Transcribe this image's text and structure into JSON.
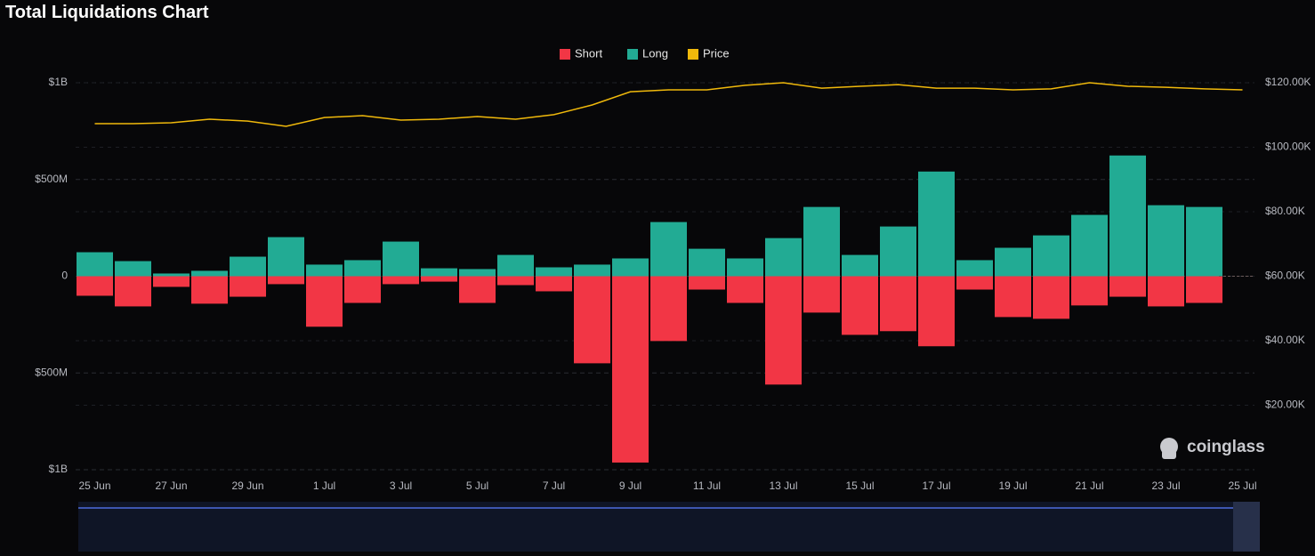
{
  "chart_data": {
    "type": "bar",
    "title": "Total Liquidations Chart",
    "watermark": "coinglass",
    "legend": "top",
    "grid": true,
    "categories": [
      "25 Jun",
      null,
      "27 Jun",
      null,
      "29 Jun",
      null,
      "1 Jul",
      null,
      "3 Jul",
      null,
      "5 Jul",
      null,
      "7 Jul",
      null,
      "9 Jul",
      null,
      "11 Jul",
      null,
      "13 Jul",
      null,
      "15 Jul",
      null,
      "17 Jul",
      null,
      "19 Jul",
      null,
      "21 Jul",
      null,
      "23 Jul",
      null,
      "25 Jul"
    ],
    "series": [
      {
        "name": "Short",
        "color": "#f23645",
        "values": [
          -101000000,
          -156000000,
          -55000000,
          -142000000,
          -106000000,
          -41000000,
          -261000000,
          -138000000,
          -41000000,
          -28000000,
          -138000000,
          -46000000,
          -78000000,
          -450000000,
          -963000000,
          -335000000,
          -69000000,
          -138000000,
          -560000000,
          -188000000,
          -303000000,
          -284000000,
          -362000000,
          -69000000,
          -211000000,
          -220000000,
          -151000000,
          -106000000,
          -156000000,
          -138000000,
          null
        ]
      },
      {
        "name": "Long",
        "color": "#22ab94",
        "values": [
          124000000,
          78000000,
          14000000,
          28000000,
          101000000,
          202000000,
          60000000,
          83000000,
          179000000,
          41000000,
          37000000,
          110000000,
          46000000,
          60000000,
          92000000,
          280000000,
          142000000,
          92000000,
          197000000,
          358000000,
          110000000,
          257000000,
          541000000,
          83000000,
          147000000,
          211000000,
          317000000,
          624000000,
          367000000,
          358000000,
          null
        ]
      },
      {
        "name": "Price",
        "color": "#f0b90b",
        "axis": "y2",
        "type": "line",
        "values": [
          107300,
          107300,
          107600,
          108700,
          108100,
          106500,
          109200,
          109800,
          108400,
          108700,
          109500,
          108700,
          110100,
          113100,
          117200,
          117800,
          117800,
          119200,
          120000,
          118300,
          118900,
          119400,
          118300,
          118300,
          117800,
          118100,
          120000,
          118900,
          118600,
          118100,
          117800
        ]
      }
    ],
    "ylim": [
      -1000000000,
      1000000000
    ],
    "yticks": [
      {
        "value": -1000000000,
        "label": "$1B"
      },
      {
        "value": -500000000,
        "label": "$500M"
      },
      0,
      {
        "value": 500000000,
        "label": "$500M"
      },
      {
        "value": 1000000000,
        "label": "$1B"
      }
    ],
    "y2lim": [
      0,
      120000
    ],
    "y2ticks": [
      {
        "value": 20000,
        "label": "$20.00K"
      },
      {
        "value": 40000,
        "label": "$40.00K"
      },
      {
        "value": 60000,
        "label": "$60.00K"
      },
      {
        "value": 80000,
        "label": "$80.00K"
      },
      {
        "value": 100000,
        "label": "$100.00K"
      },
      {
        "value": 120000,
        "label": "$120.00K"
      }
    ]
  }
}
